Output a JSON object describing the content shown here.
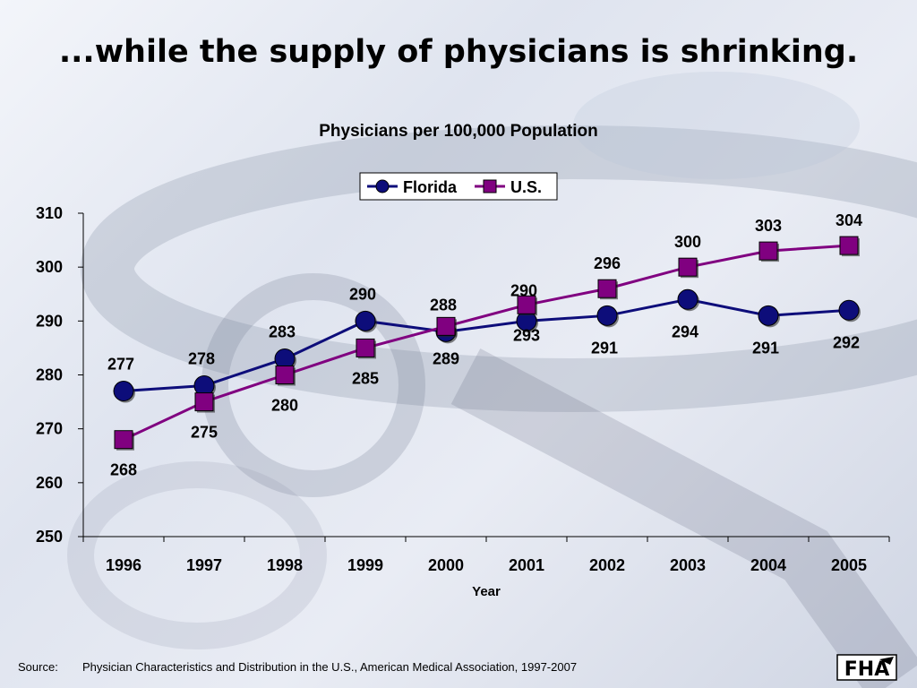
{
  "slide": {
    "title": "...while the supply of physicians is shrinking.",
    "source_label": "Source:",
    "source_text": "Physician Characteristics and Distribution in the U.S., American Medical Association, 1997-2007",
    "logo_text": "FHA"
  },
  "colors": {
    "florida": "#0d0d7a",
    "us": "#800080"
  },
  "chart_data": {
    "type": "line",
    "title": "Physicians per 100,000 Population",
    "xlabel": "Year",
    "ylabel": "",
    "categories": [
      "1996",
      "1997",
      "1998",
      "1999",
      "2000",
      "2001",
      "2002",
      "2003",
      "2004",
      "2005"
    ],
    "ylim": [
      250,
      310
    ],
    "yticks": [
      "250",
      "260",
      "270",
      "280",
      "290",
      "300",
      "310"
    ],
    "grid": false,
    "legend_position": "top-center",
    "series": [
      {
        "name": "Florida",
        "marker": "circle",
        "values": [
          277,
          278,
          283,
          290,
          288,
          290,
          291,
          294,
          291,
          292
        ],
        "labels": [
          "277",
          "278",
          "283",
          "290",
          "288",
          "290",
          "291",
          "294",
          "291",
          "292"
        ]
      },
      {
        "name": "U.S.",
        "marker": "square",
        "values": [
          268,
          275,
          280,
          285,
          289,
          293,
          296,
          300,
          303,
          304
        ],
        "labels": [
          "268",
          "275",
          "280",
          "285",
          "289",
          "293",
          "296",
          "300",
          "303",
          "304"
        ]
      }
    ]
  }
}
